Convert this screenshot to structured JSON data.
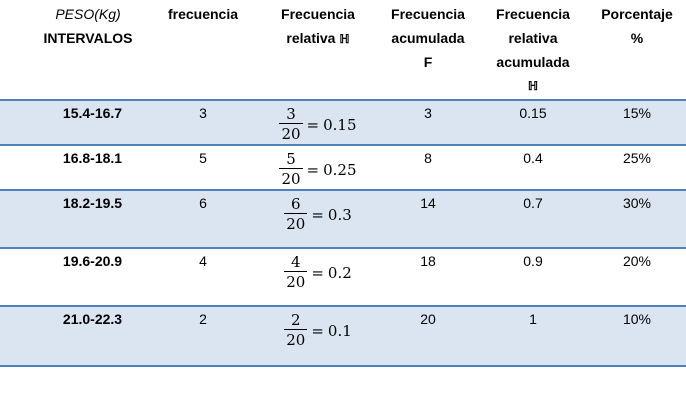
{
  "header": {
    "col0_top": "PESO(Kg)",
    "col0_bottom": "INTERVALOS",
    "col1": "frecuencia",
    "col2_line1": "Frecuencia",
    "col2_line2": "relativa",
    "col2_symbol": "ℍ",
    "col3_line1": "Frecuencia",
    "col3_line2": "acumulada",
    "col3_line3": "F",
    "col4_line1": "Frecuencia",
    "col4_line2": "relativa",
    "col4_line3": "acumulada",
    "col4_symbol": "ℍ",
    "col5_line1": "Porcentaje",
    "col5_line2": "%"
  },
  "rows": [
    {
      "interval": "15.4-16.7",
      "frequency": "3",
      "numerator": "3",
      "denominator": "20",
      "relative": "0.15",
      "cumulative": "3",
      "cum_relative": "0.15",
      "percent": "15%"
    },
    {
      "interval": "16.8-18.1",
      "frequency": "5",
      "numerator": "5",
      "denominator": "20",
      "relative": "0.25",
      "cumulative": "8",
      "cum_relative": "0.4",
      "percent": "25%"
    },
    {
      "interval": "18.2-19.5",
      "frequency": "6",
      "numerator": "6",
      "denominator": "20",
      "relative": "0.3",
      "cumulative": "14",
      "cum_relative": "0.7",
      "percent": "30%"
    },
    {
      "interval": "19.6-20.9",
      "frequency": "4",
      "numerator": "4",
      "denominator": "20",
      "relative": "0.2",
      "cumulative": "18",
      "cum_relative": "0.9",
      "percent": "20%"
    },
    {
      "interval": "21.0-22.3",
      "frequency": "2",
      "numerator": "2",
      "denominator": "20",
      "relative": "0.1",
      "cumulative": "20",
      "cum_relative": "1",
      "percent": "10%"
    }
  ],
  "colors": {
    "row_shade": "#dbe5f1",
    "border": "#4f81bd"
  }
}
